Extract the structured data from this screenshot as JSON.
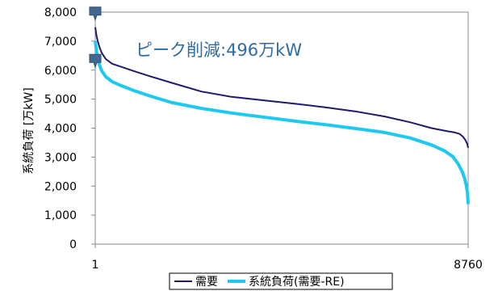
{
  "chart_data": {
    "type": "line",
    "title": "",
    "xlabel": "",
    "ylabel": "系統負荷 [万kW]",
    "xlim": [
      1,
      8760
    ],
    "ylim": [
      0,
      8000
    ],
    "x_ticks": [
      "1",
      "8760"
    ],
    "y_ticks": [
      "0",
      "1,000",
      "2,000",
      "3,000",
      "4,000",
      "5,000",
      "6,000",
      "7,000",
      "8,000"
    ],
    "annotation": "ピーク削減:496万kW",
    "peak_markers": [
      {
        "x": 1,
        "y": 7950
      },
      {
        "x": 1,
        "y": 6320
      }
    ],
    "series": [
      {
        "name": "需要",
        "color": "#1f1a6e",
        "points": [
          [
            1,
            7480
          ],
          [
            30,
            7200
          ],
          [
            60,
            7000
          ],
          [
            100,
            6800
          ],
          [
            150,
            6600
          ],
          [
            250,
            6380
          ],
          [
            400,
            6220
          ],
          [
            600,
            6120
          ],
          [
            900,
            5970
          ],
          [
            1300,
            5780
          ],
          [
            1800,
            5560
          ],
          [
            2500,
            5260
          ],
          [
            3200,
            5080
          ],
          [
            4000,
            4950
          ],
          [
            4700,
            4840
          ],
          [
            5400,
            4720
          ],
          [
            6100,
            4580
          ],
          [
            6800,
            4400
          ],
          [
            7400,
            4200
          ],
          [
            7900,
            4000
          ],
          [
            8250,
            3900
          ],
          [
            8450,
            3850
          ],
          [
            8560,
            3800
          ],
          [
            8640,
            3700
          ],
          [
            8700,
            3580
          ],
          [
            8740,
            3450
          ],
          [
            8760,
            3320
          ]
        ]
      },
      {
        "name": "系統負荷(需要-RE)",
        "color": "#1fc8f0",
        "points": [
          [
            1,
            7000
          ],
          [
            30,
            6650
          ],
          [
            60,
            6380
          ],
          [
            100,
            6180
          ],
          [
            150,
            5980
          ],
          [
            250,
            5770
          ],
          [
            400,
            5600
          ],
          [
            600,
            5470
          ],
          [
            900,
            5300
          ],
          [
            1300,
            5100
          ],
          [
            1800,
            4880
          ],
          [
            2500,
            4680
          ],
          [
            3200,
            4520
          ],
          [
            4000,
            4370
          ],
          [
            4700,
            4240
          ],
          [
            5400,
            4120
          ],
          [
            6100,
            3990
          ],
          [
            6800,
            3850
          ],
          [
            7400,
            3660
          ],
          [
            7900,
            3420
          ],
          [
            8200,
            3220
          ],
          [
            8400,
            3020
          ],
          [
            8520,
            2780
          ],
          [
            8620,
            2500
          ],
          [
            8680,
            2250
          ],
          [
            8720,
            2000
          ],
          [
            8745,
            1750
          ],
          [
            8760,
            1380
          ]
        ]
      }
    ],
    "legend_position": "bottom-center"
  }
}
